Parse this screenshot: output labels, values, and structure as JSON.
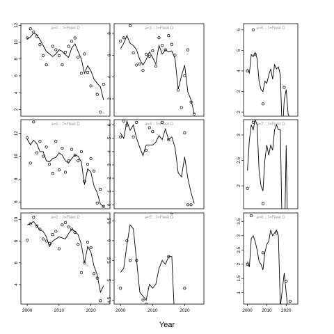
{
  "chart_data": {
    "type": "scatter",
    "xlabel": "Year",
    "xlim": [
      1998,
      2026
    ],
    "xticks": [
      2000,
      2010,
      2020
    ],
    "fit_color": "#000000",
    "point_color": "#000000",
    "title_color": "#9a9a9a",
    "panels": [
      {
        "title": "a=0 :: f=Fleet D",
        "ylim": [
          1.2,
          12.2
        ],
        "yticks": [
          2,
          4,
          6,
          8,
          10,
          12
        ],
        "x": [
          2000,
          2001,
          2002,
          2003,
          2004,
          2005,
          2006,
          2007,
          2008,
          2009,
          2010,
          2011,
          2012,
          2013,
          2014,
          2015,
          2016,
          2017,
          2018,
          2019,
          2020,
          2021,
          2022,
          2023,
          2024
        ],
        "fit": [
          10.4,
          10.6,
          11.1,
          10.9,
          10.3,
          9.6,
          8.9,
          8.6,
          8.3,
          8.6,
          9.1,
          8.9,
          8.5,
          8.2,
          9.3,
          9.8,
          8.9,
          8.0,
          6.3,
          7.2,
          6.6,
          5.6,
          5.1,
          4.7,
          3.1
        ],
        "obs": [
          [
            2000,
            10.5
          ],
          [
            2001,
            11.6
          ],
          [
            2002,
            11.2
          ],
          [
            2003,
            10.7
          ],
          [
            2004,
            9.7
          ],
          [
            2005,
            8.4
          ],
          [
            2006,
            7.3
          ],
          [
            2008,
            9.5
          ],
          [
            2009,
            9.1
          ],
          [
            2010,
            8.4
          ],
          [
            2011,
            7.3
          ],
          [
            2012,
            8.8
          ],
          [
            2013,
            9.5
          ],
          [
            2014,
            10.1
          ],
          [
            2015,
            10.5
          ],
          [
            2016,
            8.2
          ],
          [
            2017,
            6.3
          ],
          [
            2018,
            8.6
          ],
          [
            2019,
            6.4
          ],
          [
            2020,
            4.8
          ],
          [
            2022,
            3.8
          ],
          [
            2023,
            1.7
          ],
          [
            2024,
            5.0
          ]
        ]
      },
      {
        "title": "a=3 :: f=Fleet D",
        "ylim": [
          0.4,
          8.9
        ],
        "yticks": [
          2,
          4,
          6,
          8
        ],
        "x": [
          2000,
          2001,
          2002,
          2003,
          2004,
          2005,
          2006,
          2007,
          2008,
          2009,
          2010,
          2011,
          2012,
          2013,
          2014,
          2015,
          2016,
          2017,
          2018,
          2019,
          2020,
          2021,
          2022,
          2023
        ],
        "fit": [
          6.6,
          7.1,
          7.8,
          7.1,
          6.9,
          6.5,
          5.6,
          5.1,
          5.6,
          6.3,
          5.8,
          5.2,
          6.9,
          6.1,
          6.5,
          6.3,
          6.4,
          5.7,
          2.9,
          4.1,
          5.1,
          2.6,
          1.9,
          0.6
        ],
        "obs": [
          [
            2000,
            7.3
          ],
          [
            2001,
            7.6
          ],
          [
            2003,
            8.7
          ],
          [
            2004,
            6.2
          ],
          [
            2005,
            5.1
          ],
          [
            2006,
            5.2
          ],
          [
            2007,
            4.6
          ],
          [
            2008,
            6.1
          ],
          [
            2009,
            5.9
          ],
          [
            2010,
            6.4
          ],
          [
            2011,
            5.0
          ],
          [
            2012,
            7.6
          ],
          [
            2013,
            6.9
          ],
          [
            2014,
            6.5
          ],
          [
            2015,
            7.8
          ],
          [
            2016,
            7.0
          ],
          [
            2017,
            6.0
          ],
          [
            2018,
            2.8
          ],
          [
            2019,
            1.2
          ],
          [
            2020,
            4.1
          ],
          [
            2021,
            6.5
          ],
          [
            2022,
            1.7
          ],
          [
            2023,
            0.6
          ]
        ]
      },
      {
        "title": "a=6 :: f=Fleet D",
        "ylim": [
          1.8,
          6.3
        ],
        "yticks": [
          2,
          3,
          4,
          5,
          6
        ],
        "x": [
          2000,
          2001,
          2002,
          2003,
          2004,
          2005,
          2006,
          2007,
          2008,
          2009,
          2010,
          2011,
          2012,
          2013,
          2014,
          2015,
          2016,
          2017,
          2018,
          2019,
          2020,
          2021,
          2022
        ],
        "fit": [
          4.1,
          3.9,
          4.8,
          4.7,
          4.9,
          4.6,
          3.5,
          3.1,
          3.0,
          3.5,
          3.4,
          3.8,
          4.1,
          3.6,
          4.3,
          4.1,
          4.2,
          3.8,
          0.9,
          2.6,
          3.1,
          1.9,
          1.7
        ],
        "obs": [
          [
            2000,
            4.0
          ],
          [
            2003,
            6.0
          ],
          [
            2004,
            4.8
          ],
          [
            2008,
            2.4
          ],
          [
            2019,
            3.2
          ]
        ]
      },
      {
        "title": "a=1 :: f=Fleet D",
        "ylim": [
          5.4,
          13.2
        ],
        "yticks": [
          6,
          8,
          10,
          12
        ],
        "x": [
          2000,
          2001,
          2002,
          2003,
          2004,
          2005,
          2006,
          2007,
          2008,
          2009,
          2010,
          2011,
          2012,
          2013,
          2014,
          2015,
          2016,
          2017,
          2018,
          2019,
          2020,
          2021,
          2022,
          2023,
          2024
        ],
        "fit": [
          11.5,
          11.0,
          11.4,
          11.1,
          10.4,
          10.4,
          9.6,
          9.5,
          9.8,
          9.9,
          10.3,
          10.1,
          9.6,
          9.4,
          9.8,
          10.1,
          10.0,
          9.5,
          7.5,
          8.9,
          8.6,
          7.4,
          6.8,
          5.8,
          5.6
        ],
        "obs": [
          [
            2000,
            11.6
          ],
          [
            2001,
            9.4
          ],
          [
            2002,
            13.0
          ],
          [
            2003,
            10.3
          ],
          [
            2004,
            11.3
          ],
          [
            2005,
            10.0
          ],
          [
            2006,
            10.8
          ],
          [
            2007,
            9.3
          ],
          [
            2008,
            8.5
          ],
          [
            2009,
            11.3
          ],
          [
            2010,
            8.8
          ],
          [
            2011,
            10.7
          ],
          [
            2012,
            8.6
          ],
          [
            2013,
            9.6
          ],
          [
            2014,
            10.6
          ],
          [
            2015,
            10.1
          ],
          [
            2016,
            9.6
          ],
          [
            2017,
            10.4
          ],
          [
            2018,
            7.8
          ],
          [
            2019,
            9.3
          ],
          [
            2020,
            9.8
          ],
          [
            2021,
            8.7
          ],
          [
            2022,
            5.9
          ],
          [
            2023,
            7.1
          ],
          [
            2024,
            5.6
          ]
        ]
      },
      {
        "title": "a=4 :: f=Fleet D",
        "ylim": [
          -0.3,
          6.4
        ],
        "yticks": [
          0,
          1,
          2,
          3,
          4,
          5,
          6
        ],
        "x": [
          2000,
          2001,
          2002,
          2003,
          2004,
          2005,
          2006,
          2007,
          2008,
          2009,
          2010,
          2011,
          2012,
          2013,
          2014,
          2015,
          2016,
          2017,
          2018,
          2019,
          2020,
          2021,
          2022,
          2023
        ],
        "fit": [
          5.4,
          5.0,
          6.3,
          5.6,
          6.0,
          5.0,
          4.3,
          3.7,
          4.5,
          4.5,
          4.5,
          4.7,
          5.2,
          4.9,
          5.7,
          4.9,
          5.1,
          4.3,
          2.4,
          2.1,
          3.6,
          2.0,
          0.9,
          0.1
        ],
        "obs": [
          [
            2000,
            5.1
          ],
          [
            2001,
            6.3
          ],
          [
            2002,
            6.0
          ],
          [
            2004,
            5.1
          ],
          [
            2005,
            6.2
          ],
          [
            2008,
            4.1
          ],
          [
            2009,
            5.8
          ],
          [
            2010,
            5.5
          ],
          [
            2013,
            6.2
          ],
          [
            2015,
            4.9
          ],
          [
            2020,
            5.4
          ],
          [
            2021,
            0.0
          ],
          [
            2022,
            0.0
          ]
        ]
      },
      {
        "title": "a=7 :: f=Fleet D",
        "ylim": [
          1.55,
          3.3
        ],
        "yticks": [
          2.0,
          2.5,
          3.0
        ],
        "x": [
          2000,
          2001,
          2002,
          2003,
          2004,
          2005,
          2006,
          2007,
          2008,
          2009,
          2010,
          2011,
          2012,
          2013,
          2014,
          2015,
          2016,
          2017,
          2018,
          2019,
          2020,
          2021
        ],
        "fit": [
          2.3,
          2.9,
          3.2,
          3.1,
          3.3,
          3.2,
          2.3,
          2.0,
          1.9,
          2.5,
          2.8,
          2.6,
          2.8,
          2.7,
          3.1,
          3.2,
          3.1,
          3.1,
          0.9,
          0.6,
          2.8,
          0.3
        ],
        "obs": [
          [
            2000,
            1.95
          ],
          [
            2003,
            3.25
          ],
          [
            2008,
            1.65
          ]
        ]
      },
      {
        "title": "a=2 :: f=Fleet D",
        "ylim": [
          2.2,
          10.6
        ],
        "yticks": [
          4,
          6,
          8,
          10
        ],
        "x": [
          2000,
          2001,
          2002,
          2003,
          2004,
          2005,
          2006,
          2007,
          2008,
          2009,
          2010,
          2011,
          2012,
          2013,
          2014,
          2015,
          2016,
          2017,
          2018,
          2019,
          2020,
          2021,
          2022,
          2023,
          2024
        ],
        "fit": [
          9.5,
          9.6,
          9.8,
          9.4,
          9.0,
          8.9,
          8.4,
          7.5,
          8.0,
          8.2,
          8.4,
          8.3,
          8.2,
          8.7,
          9.1,
          8.9,
          8.6,
          7.7,
          6.0,
          7.5,
          7.0,
          5.7,
          4.9,
          3.3,
          3.9
        ],
        "obs": [
          [
            2000,
            8.1
          ],
          [
            2001,
            9.6
          ],
          [
            2002,
            10.2
          ],
          [
            2003,
            9.4
          ],
          [
            2004,
            9.1
          ],
          [
            2005,
            8.2
          ],
          [
            2006,
            8.0
          ],
          [
            2007,
            7.8
          ],
          [
            2008,
            8.6
          ],
          [
            2009,
            8.9
          ],
          [
            2010,
            7.3
          ],
          [
            2011,
            9.5
          ],
          [
            2012,
            9.7
          ],
          [
            2013,
            9.3
          ],
          [
            2014,
            9.1
          ],
          [
            2015,
            8.8
          ],
          [
            2016,
            7.7
          ],
          [
            2017,
            5.1
          ],
          [
            2018,
            6.0
          ],
          [
            2019,
            7.9
          ],
          [
            2020,
            7.4
          ],
          [
            2021,
            5.0
          ],
          [
            2022,
            4.6
          ],
          [
            2023,
            2.5
          ]
        ]
      },
      {
        "title": "a=5 :: f=Fleet D",
        "ylim": [
          4.4,
          6.7
        ],
        "yticks": [
          4.5,
          5.0,
          5.5,
          6.0,
          6.5
        ],
        "x": [
          2000,
          2001,
          2002,
          2003,
          2004,
          2005,
          2006,
          2007,
          2008,
          2009,
          2010,
          2011,
          2012,
          2013,
          2014,
          2015,
          2016,
          2017,
          2018
        ],
        "fit": [
          5.2,
          5.3,
          5.9,
          6.4,
          6.3,
          5.5,
          4.7,
          4.6,
          4.5,
          4.9,
          4.8,
          4.9,
          5.3,
          5.5,
          5.4,
          5.6,
          5.6,
          3.8,
          4.0
        ],
        "obs": [
          [
            2000,
            4.8
          ],
          [
            2002,
            6.0
          ],
          [
            2003,
            5.5
          ],
          [
            2005,
            5.5
          ],
          [
            2007,
            4.5
          ],
          [
            2008,
            4.4
          ],
          [
            2015,
            5.6
          ],
          [
            2016,
            6.7
          ],
          [
            2020,
            4.8
          ]
        ]
      },
      {
        "title": "a=8 :: f=Fleet D",
        "ylim": [
          0.6,
          3.8
        ],
        "yticks": [
          1.0,
          1.5,
          2.0,
          2.5,
          3.0,
          3.5
        ],
        "x": [
          2000,
          2001,
          2002,
          2003,
          2004,
          2005,
          2006,
          2007,
          2008,
          2009,
          2010,
          2011,
          2012,
          2013,
          2014,
          2015,
          2016,
          2017,
          2018,
          2019,
          2020,
          2021,
          2022
        ],
        "fit": [
          2.1,
          1.9,
          2.9,
          3.0,
          2.8,
          2.5,
          2.1,
          2.0,
          1.8,
          2.4,
          2.7,
          2.8,
          3.2,
          3.0,
          3.1,
          3.2,
          3.0,
          0.5,
          1.1,
          1.7,
          1.0,
          0.3,
          0.2
        ],
        "obs": [
          [
            2000,
            2.0
          ],
          [
            2002,
            3.7
          ],
          [
            2008,
            2.4
          ],
          [
            2015,
            3.1
          ],
          [
            2020,
            1.4
          ],
          [
            2022,
            0.7
          ]
        ]
      }
    ]
  }
}
